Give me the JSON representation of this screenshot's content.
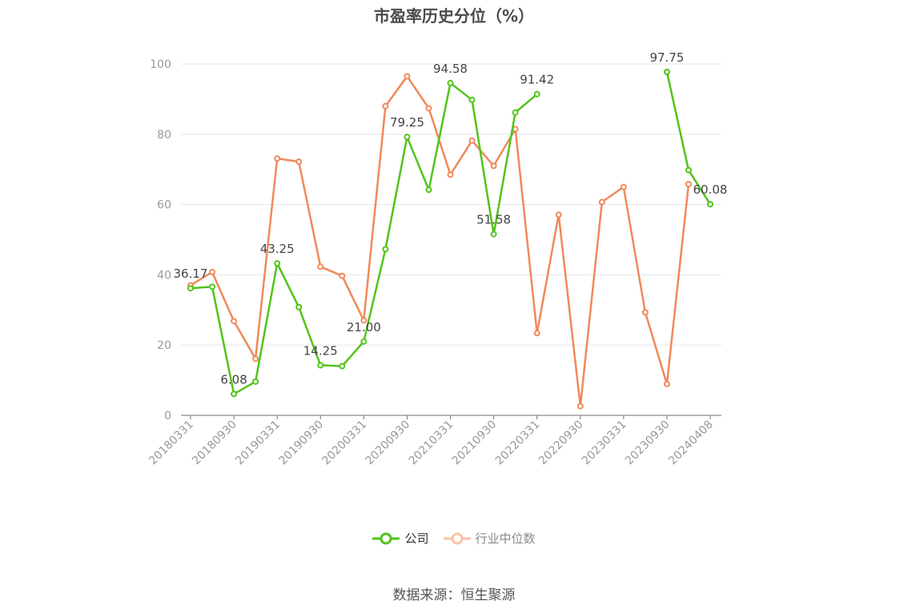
{
  "chart_data": {
    "type": "line",
    "title": "市盈率历史分位（%）",
    "ylim": [
      0,
      100
    ],
    "yticks": [
      0,
      20,
      40,
      60,
      80,
      100
    ],
    "grid": true,
    "legend_position": "bottom",
    "x_tick_labels": [
      "20180331",
      "20180930",
      "20190331",
      "20190930",
      "20200331",
      "20200930",
      "20210331",
      "20210930",
      "20220331",
      "20220930",
      "20230331",
      "20230930",
      "20240408"
    ],
    "x": [
      "20180331",
      "20180630",
      "20180930",
      "20181231",
      "20190331",
      "20190630",
      "20190930",
      "20191231",
      "20200331",
      "20200630",
      "20200930",
      "20201231",
      "20210331",
      "20210630",
      "20210930",
      "20211231",
      "20220331",
      "20220630",
      "20220930",
      "20221231",
      "20230331",
      "20230630",
      "20230930",
      "20231231",
      "20240408"
    ],
    "series": [
      {
        "name": "公司",
        "color": "#52c41a",
        "values": [
          36.17,
          36.6,
          6.08,
          9.6,
          43.25,
          30.8,
          14.25,
          14.0,
          21.0,
          47.3,
          79.25,
          64.2,
          94.58,
          89.8,
          51.58,
          86.2,
          91.42,
          null,
          null,
          null,
          null,
          null,
          97.75,
          69.8,
          60.08
        ],
        "data_labels": [
          {
            "index": 0,
            "text": "36.17"
          },
          {
            "index": 2,
            "text": "6.08"
          },
          {
            "index": 4,
            "text": "43.25"
          },
          {
            "index": 6,
            "text": "14.25"
          },
          {
            "index": 8,
            "text": "21.00"
          },
          {
            "index": 10,
            "text": "79.25"
          },
          {
            "index": 12,
            "text": "94.58"
          },
          {
            "index": 14,
            "text": "51.58"
          },
          {
            "index": 16,
            "text": "91.42"
          },
          {
            "index": 22,
            "text": "97.75"
          },
          {
            "index": 24,
            "text": "60.08"
          }
        ]
      },
      {
        "name": "行业中位数",
        "color": "#f0895a",
        "values": [
          37.0,
          40.8,
          26.8,
          16.1,
          73.1,
          72.2,
          42.3,
          39.7,
          27.0,
          88.0,
          96.5,
          87.4,
          68.5,
          78.2,
          71.0,
          81.5,
          23.4,
          57.1,
          2.6,
          60.7,
          65.0,
          29.3,
          8.9,
          65.8,
          null
        ]
      }
    ]
  },
  "source": "数据来源：恒生聚源"
}
